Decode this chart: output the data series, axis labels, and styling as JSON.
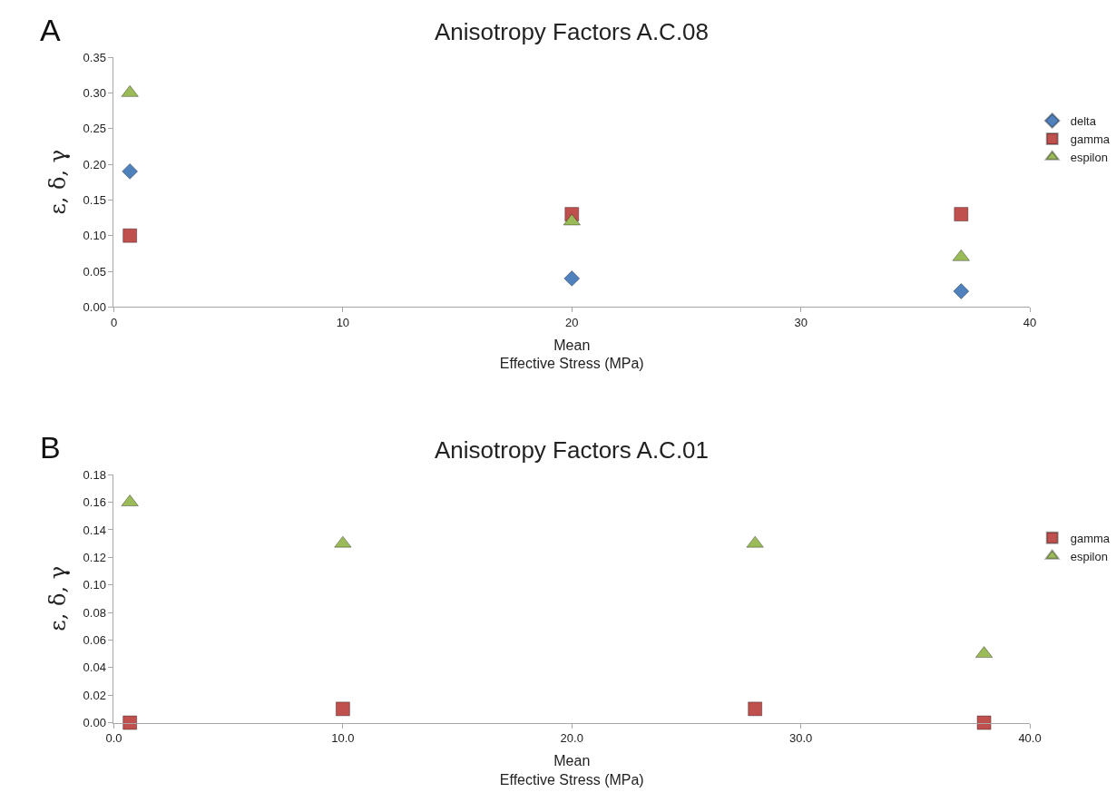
{
  "chart_data": [
    {
      "type": "scatter",
      "title": "Anisotropy Factors A.C.08",
      "xlabel": "Mean\nEffective Stress (MPa)",
      "ylabel": "ε, δ, γ",
      "annotations": [
        "A"
      ],
      "x": [
        0.7,
        20,
        37
      ],
      "series": [
        {
          "name": "delta",
          "color": "#4f81bd",
          "marker": "diamond",
          "values": [
            0.19,
            0.04,
            0.022
          ]
        },
        {
          "name": "gamma",
          "color": "#c0504d",
          "marker": "square",
          "values": [
            0.1,
            0.13,
            0.13
          ]
        },
        {
          "name": "espilon",
          "color": "#9bbb59",
          "marker": "triangle",
          "values": [
            0.3,
            0.12,
            0.07
          ]
        }
      ],
      "xlim": [
        0,
        40
      ],
      "xticks": [
        0,
        10,
        20,
        30,
        40
      ],
      "ylim": [
        0,
        0.35
      ],
      "yticks": [
        {
          "value": 0,
          "label": "0.00"
        },
        {
          "value": 0.05,
          "label": "0.05"
        },
        {
          "value": 0.1,
          "label": "0.10"
        },
        {
          "value": 0.15,
          "label": "0.15"
        },
        {
          "value": 0.2,
          "label": "0.20"
        },
        {
          "value": 0.25,
          "label": "0.25"
        },
        {
          "value": 0.3,
          "label": "0.30"
        },
        {
          "value": 0.35,
          "label": "0.35"
        }
      ],
      "legend": "right"
    },
    {
      "type": "scatter",
      "title": "Anisotropy Factors A.C.01",
      "xlabel": "Mean\nEffective Stress (MPa)",
      "ylabel": "ε, δ, γ",
      "annotations": [
        "B"
      ],
      "x": [
        0.7,
        10,
        28,
        38
      ],
      "series": [
        {
          "name": "gamma",
          "color": "#c0504d",
          "marker": "square",
          "values": [
            0,
            0.01,
            0.01,
            0
          ]
        },
        {
          "name": "espilon",
          "color": "#9bbb59",
          "marker": "triangle",
          "values": [
            0.16,
            0.13,
            0.13,
            0.05
          ]
        }
      ],
      "xlim": [
        0,
        40
      ],
      "xticks": [
        {
          "value": 0,
          "label": "0.0"
        },
        {
          "value": 10,
          "label": "10.0"
        },
        {
          "value": 20,
          "label": "20.0"
        },
        {
          "value": 30,
          "label": "30.0"
        },
        {
          "value": 40,
          "label": "40.0"
        }
      ],
      "ylim": [
        0,
        0.18
      ],
      "yticks": [
        {
          "value": 0,
          "label": "0.00"
        },
        {
          "value": 0.02,
          "label": "0.02"
        },
        {
          "value": 0.04,
          "label": "0.04"
        },
        {
          "value": 0.06,
          "label": "0.06"
        },
        {
          "value": 0.08,
          "label": "0.08"
        },
        {
          "value": 0.1,
          "label": "0.10"
        },
        {
          "value": 0.12,
          "label": "0.12"
        },
        {
          "value": 0.14,
          "label": "0.14"
        },
        {
          "value": 0.16,
          "label": "0.16"
        },
        {
          "value": 0.18,
          "label": "0.18"
        }
      ],
      "legend": "right"
    }
  ]
}
